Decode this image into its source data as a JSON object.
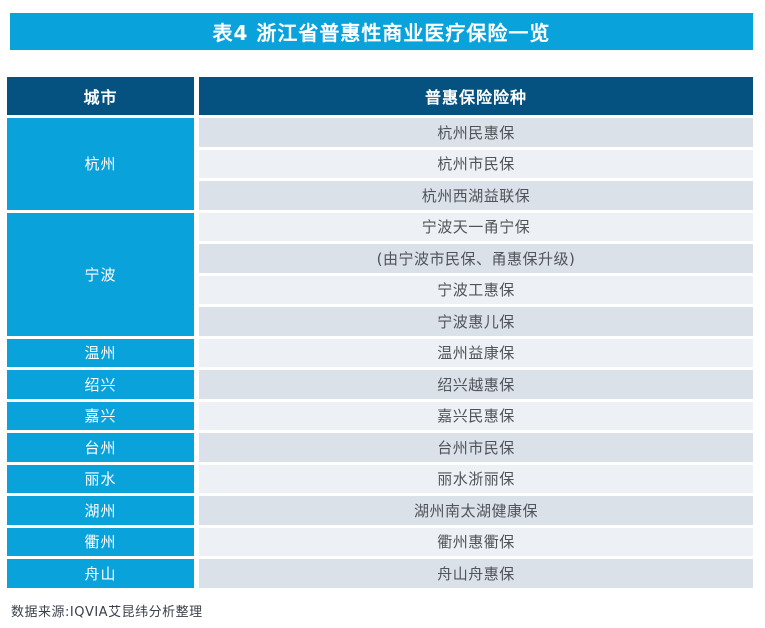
{
  "title": "表4 浙江省普惠性商业医疗保险一览",
  "table": {
    "headers": [
      "城市",
      "普惠保险险种"
    ],
    "groups": [
      {
        "city": "杭州",
        "products": [
          "杭州民惠保",
          "杭州市民保",
          "杭州西湖益联保"
        ]
      },
      {
        "city": "宁波",
        "products": [
          "宁波天一甬宁保",
          "(由宁波市民保、甬惠保升级)",
          "宁波工惠保",
          "宁波惠儿保"
        ]
      },
      {
        "city": "温州",
        "products": [
          "温州益康保"
        ]
      },
      {
        "city": "绍兴",
        "products": [
          "绍兴越惠保"
        ]
      },
      {
        "city": "嘉兴",
        "products": [
          "嘉兴民惠保"
        ]
      },
      {
        "city": "台州",
        "products": [
          "台州市民保"
        ]
      },
      {
        "city": "丽水",
        "products": [
          "丽水浙丽保"
        ]
      },
      {
        "city": "湖州",
        "products": [
          "湖州南太湖健康保"
        ]
      },
      {
        "city": "衢州",
        "products": [
          "衢州惠衢保"
        ]
      },
      {
        "city": "舟山",
        "products": [
          "舟山舟惠保"
        ]
      }
    ]
  },
  "footer": {
    "source": "数据来源:IQVIA艾昆纬分析整理"
  },
  "colors": {
    "title_bg": "#0aa2db",
    "header_bg": "#05517f",
    "city_bg": "#0aa2db",
    "row_odd_bg": "#dbe1e8",
    "row_even_bg": "#edf0f5",
    "body_text": "#505359",
    "footer_text": "#3a414b",
    "title_text": "#ffffff"
  }
}
